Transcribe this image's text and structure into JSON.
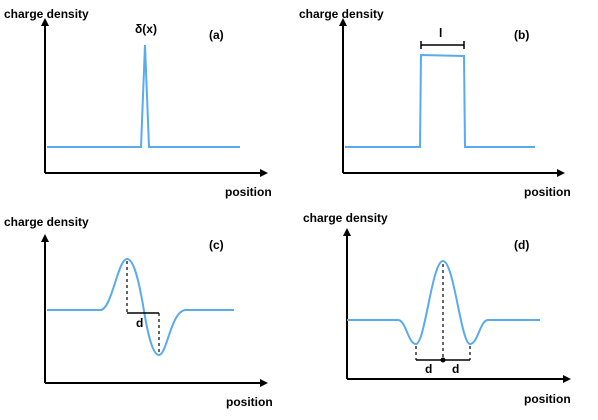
{
  "colors": {
    "curve": "#5aaaf0",
    "axis": "#000000"
  },
  "panels": {
    "a": {
      "label": "(a)",
      "ylabel": "charge density",
      "xlabel": "position",
      "annotation": "δ(x)"
    },
    "b": {
      "label": "(b)",
      "ylabel": "charge density",
      "xlabel": "position",
      "annotation": "l"
    },
    "c": {
      "label": "(c)",
      "ylabel": "charge density",
      "xlabel": "position",
      "annotation": "d"
    },
    "d": {
      "label": "(d)",
      "ylabel": "charge density",
      "xlabel": "position",
      "annotation_left": "d",
      "annotation_right": "d"
    }
  }
}
